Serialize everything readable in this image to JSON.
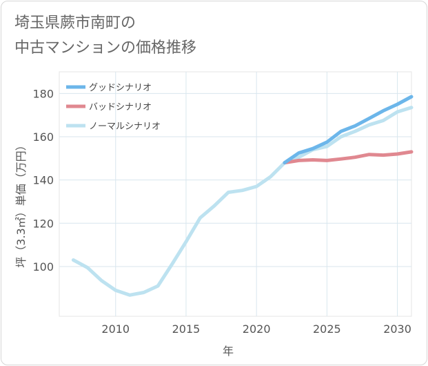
{
  "title_lines": [
    "埼玉県蕨市南町の",
    "中古マンションの価格推移"
  ],
  "chart_data": {
    "type": "line",
    "title": "埼玉県蕨市南町の中古マンションの価格推移",
    "xlabel": "年",
    "ylabel": "坪（3.3㎡）単価（万円）",
    "xlim": [
      2006,
      2031
    ],
    "ylim": [
      77,
      190
    ],
    "x_ticks": [
      2010,
      2015,
      2020,
      2025,
      2030
    ],
    "y_ticks": [
      100,
      120,
      140,
      160,
      180
    ],
    "grid": true,
    "legend_position": "top-left",
    "series": [
      {
        "name": "グッドシナリオ",
        "color": "#6cb6ea",
        "x": [
          2022,
          2023,
          2024,
          2025,
          2026,
          2027,
          2028,
          2029,
          2030,
          2031
        ],
        "y": [
          148,
          152.5,
          154.5,
          157.5,
          162.5,
          165,
          168.5,
          172,
          175,
          178.5
        ]
      },
      {
        "name": "バッドシナリオ",
        "color": "#e08890",
        "x": [
          2022,
          2023,
          2024,
          2025,
          2026,
          2027,
          2028,
          2029,
          2030,
          2031
        ],
        "y": [
          148,
          149,
          149.3,
          149,
          149.7,
          150.5,
          151.8,
          151.5,
          152,
          153
        ]
      },
      {
        "name": "ノーマルシナリオ",
        "color": "#bde2f0",
        "x": [
          2007,
          2008,
          2009,
          2010,
          2011,
          2012,
          2013,
          2014,
          2015,
          2016,
          2017,
          2018,
          2019,
          2020,
          2021,
          2022,
          2023,
          2024,
          2025,
          2026,
          2027,
          2028,
          2029,
          2030,
          2031
        ],
        "y": [
          103,
          99.5,
          93.5,
          89,
          86.8,
          88,
          91,
          101,
          111.5,
          122.5,
          128,
          134.3,
          135.2,
          137,
          141.5,
          148,
          150.5,
          154,
          155.5,
          160,
          162.5,
          165.5,
          167.5,
          171.5,
          173.5
        ]
      }
    ]
  }
}
